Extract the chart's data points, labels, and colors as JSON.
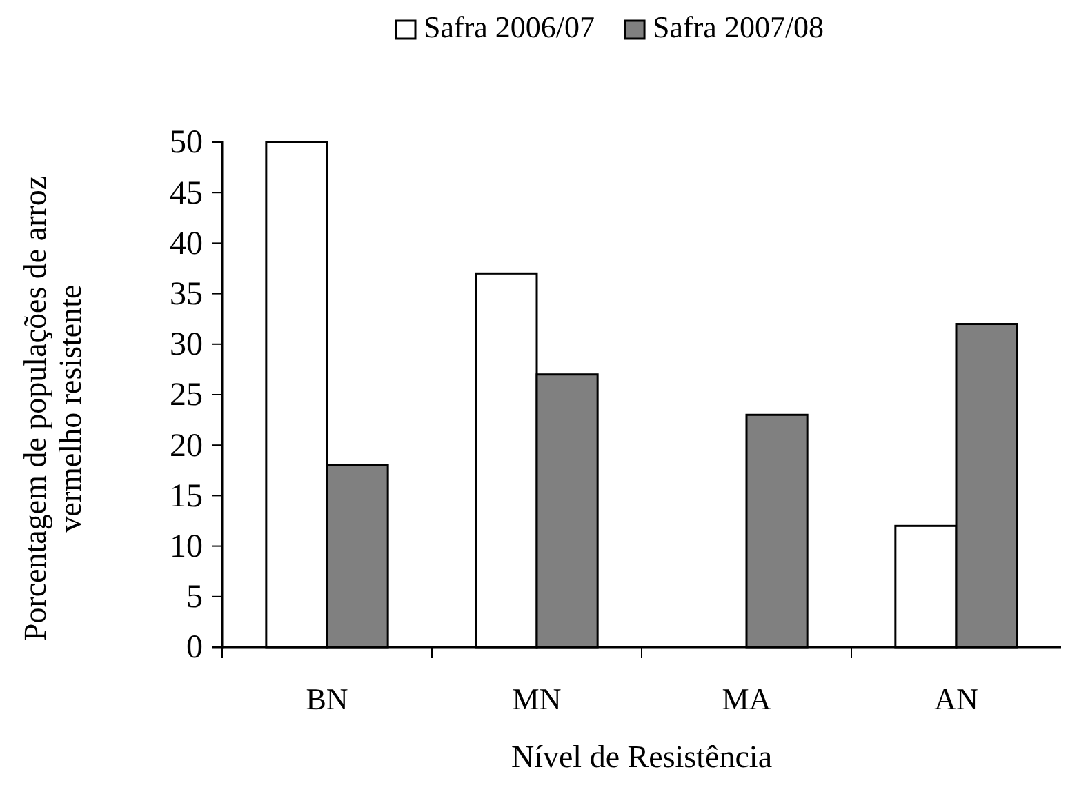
{
  "chart_data": {
    "type": "bar",
    "xlabel": "Nível de Resistência",
    "ylabel": "Porcentagem de populações de arroz vermelho resistente",
    "categories": [
      "BN",
      "MN",
      "MA",
      "AN"
    ],
    "series": [
      {
        "name": "Safra 2006/07",
        "color": "#ffffff",
        "values": [
          50,
          37,
          0,
          12
        ]
      },
      {
        "name": "Safra 2007/08",
        "color": "#808080",
        "values": [
          18,
          27,
          23,
          32
        ]
      }
    ],
    "ylim": [
      0,
      50
    ],
    "yticks": [
      0,
      5,
      10,
      15,
      20,
      25,
      30,
      35,
      40,
      45,
      50
    ],
    "grid": false,
    "legend": "top"
  }
}
